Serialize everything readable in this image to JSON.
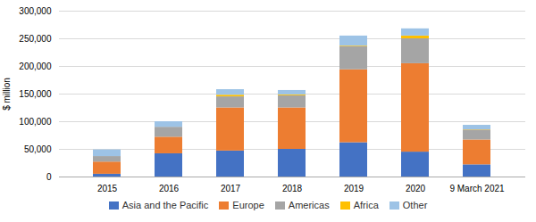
{
  "chart_data": {
    "type": "bar",
    "stacked": true,
    "ylabel": "$ million",
    "categories": [
      "2015",
      "2016",
      "2017",
      "2018",
      "2019",
      "2020",
      "9 March 2021"
    ],
    "series": [
      {
        "name": "Asia and the Pacific",
        "color": "#4472C4",
        "values": [
          5000,
          42000,
          47000,
          50000,
          62000,
          45000,
          22000
        ]
      },
      {
        "name": "Europe",
        "color": "#ED7D31",
        "values": [
          22000,
          30000,
          78000,
          75000,
          132000,
          160000,
          45000
        ]
      },
      {
        "name": "Americas",
        "color": "#A5A5A5",
        "values": [
          10000,
          18000,
          20000,
          22000,
          42000,
          45000,
          18000
        ]
      },
      {
        "name": "Africa",
        "color": "#FFC000",
        "values": [
          0,
          0,
          3000,
          1500,
          1000,
          5000,
          500
        ]
      },
      {
        "name": "Other",
        "color": "#9DC3E6",
        "values": [
          12000,
          10000,
          10000,
          8000,
          18000,
          13000,
          8000
        ]
      }
    ],
    "ylim": [
      0,
      300000
    ],
    "yticks": [
      0,
      {
        "value": 50000,
        "label": "50,000"
      },
      {
        "value": 100000,
        "label": "100,000"
      },
      {
        "value": 150000,
        "label": "150,000"
      },
      {
        "value": 200000,
        "label": "200,000"
      },
      {
        "value": 250000,
        "label": "250,000"
      },
      {
        "value": 300000,
        "label": "300,000"
      }
    ],
    "grid": true,
    "legend": "bottom"
  }
}
